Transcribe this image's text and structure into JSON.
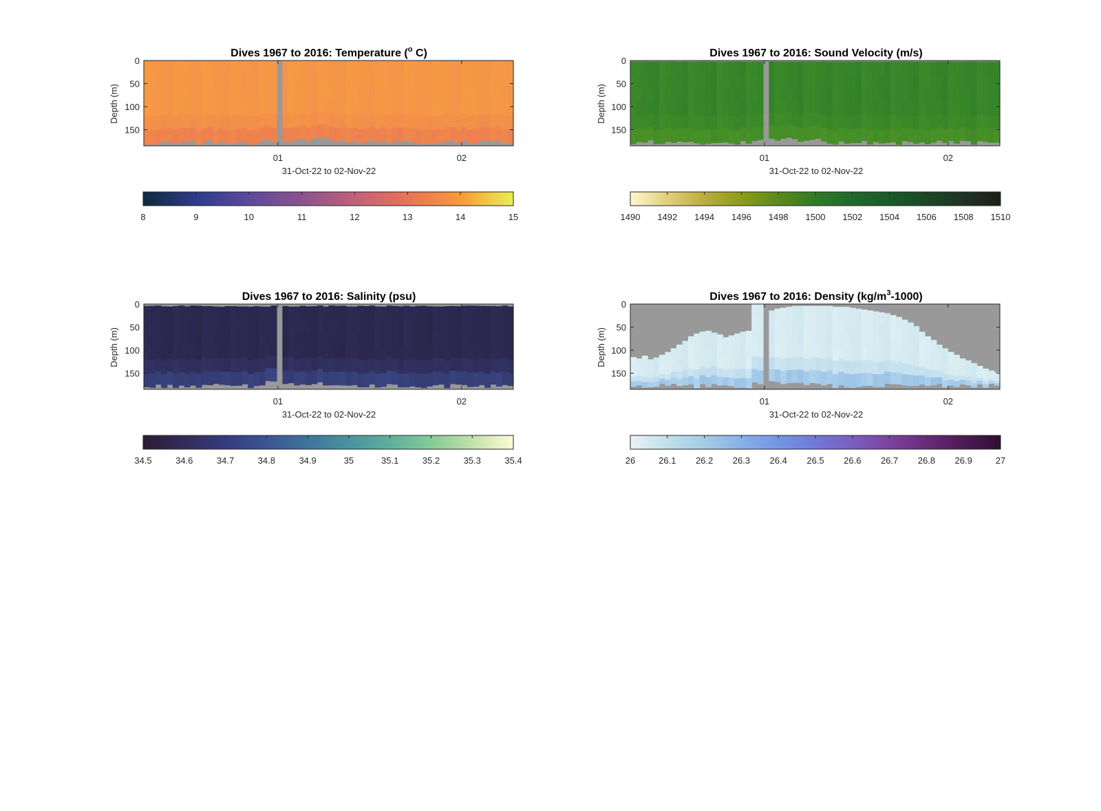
{
  "figure": {
    "background": "#ffffff",
    "nodata_color": "#999999"
  },
  "chart_data": [
    {
      "type": "heatmap",
      "title_main": "Dives 1967 to 2016: Temperature (",
      "title_sup": "o",
      "title_end": " C)",
      "xlabel": "31-Oct-22 to 02-Nov-22",
      "ylabel": "Depth (m)",
      "xticks": [
        "01",
        "02"
      ],
      "yticks": [
        "0",
        "50",
        "100",
        "150"
      ],
      "ylim": [
        0,
        185
      ],
      "grid": false,
      "gap_fraction": 0.36,
      "surface_bins": 1,
      "surface_variability": 0.5,
      "colorbar": {
        "ticks": [
          "8",
          "9",
          "10",
          "11",
          "12",
          "13",
          "14",
          "15"
        ],
        "colors": [
          "#0e2a3d",
          "#2e3a8c",
          "#5c4a9a",
          "#8a538f",
          "#c2607a",
          "#e97356",
          "#f79a3a",
          "#e7f052"
        ]
      },
      "fill": {
        "base": "#f69a44",
        "alt": "#f4924a",
        "deep": "#eb7a52"
      }
    },
    {
      "type": "heatmap",
      "title_main": "Dives 1967 to 2016: Sound Velocity (m/s)",
      "title_sup": "",
      "title_end": "",
      "xlabel": "31-Oct-22 to 02-Nov-22",
      "ylabel": "Depth (m)",
      "xticks": [
        "01",
        "02"
      ],
      "yticks": [
        "0",
        "50",
        "100",
        "150"
      ],
      "ylim": [
        0,
        185
      ],
      "grid": false,
      "gap_fraction": 0.36,
      "surface_bins": 2,
      "surface_variability": 0.5,
      "colorbar": {
        "ticks": [
          "1490",
          "1492",
          "1494",
          "1496",
          "1498",
          "1500",
          "1502",
          "1504",
          "1506",
          "1508",
          "1510"
        ],
        "colors": [
          "#fdf8cc",
          "#e1cf7e",
          "#b9ad3c",
          "#8c9c18",
          "#5b8a1c",
          "#2f7a27",
          "#1f6a2c",
          "#1a5a2a",
          "#1b4826",
          "#1f3322",
          "#1b1f18"
        ]
      },
      "fill": {
        "base": "#3b8a2a",
        "alt": "#2f7f28",
        "deep": "#4d9326"
      }
    },
    {
      "type": "heatmap",
      "title_main": "Dives 1967 to 2016: Salinity (psu)",
      "title_sup": "",
      "title_end": "",
      "xlabel": "31-Oct-22 to 02-Nov-22",
      "ylabel": "Depth (m)",
      "xticks": [
        "01",
        "02"
      ],
      "yticks": [
        "0",
        "50",
        "100",
        "150"
      ],
      "ylim": [
        0,
        185
      ],
      "grid": false,
      "gap_fraction": 0.36,
      "surface_bins": 3,
      "surface_variability": 3,
      "colorbar": {
        "ticks": [
          "34.5",
          "34.6",
          "34.7",
          "34.8",
          "34.9",
          "35",
          "35.1",
          "35.2",
          "35.3",
          "35.4"
        ],
        "colors": [
          "#2b1d35",
          "#322b5a",
          "#363b7e",
          "#3b5592",
          "#3f739b",
          "#4a92a0",
          "#5eb09c",
          "#86ca98",
          "#c2e2a8",
          "#fdfbd6"
        ]
      },
      "fill": {
        "base": "#2f2a55",
        "alt": "#2a2549",
        "deep": "#3a4a8a"
      }
    },
    {
      "type": "heatmap",
      "title_main": "Dives 1967 to 2016: Density (kg/m",
      "title_sup": "3",
      "title_end": "-1000)",
      "xlabel": "31-Oct-22 to 02-Nov-22",
      "ylabel": "Depth (m)",
      "xticks": [
        "01",
        "02"
      ],
      "yticks": [
        "0",
        "50",
        "100",
        "150"
      ],
      "ylim": [
        0,
        185
      ],
      "grid": false,
      "gap_fraction": 0.36,
      "surface_bins": 10,
      "surface_variability": 4,
      "colorbar": {
        "ticks": [
          "26",
          "26.1",
          "26.2",
          "26.3",
          "26.4",
          "26.5",
          "26.6",
          "26.7",
          "26.8",
          "26.9",
          "27"
        ],
        "colors": [
          "#e8f3f4",
          "#c1dfe9",
          "#a3cce6",
          "#87b1e6",
          "#7395e6",
          "#7178d8",
          "#7a5ec0",
          "#7c439e",
          "#6a2a7a",
          "#4e1a55",
          "#2e0f30"
        ]
      },
      "fill": {
        "base": "#dceff3",
        "alt": "#cfe6ef",
        "deep": "#90bce6"
      },
      "surface_profile": [
        115,
        118,
        112,
        120,
        116,
        110,
        104,
        96,
        88,
        80,
        70,
        64,
        60,
        58,
        62,
        66,
        72,
        68,
        64,
        60,
        58,
        0,
        0,
        22,
        14,
        10,
        8,
        6,
        4,
        4,
        4,
        4,
        4,
        4,
        4,
        6,
        6,
        6,
        8,
        10,
        12,
        14,
        16,
        18,
        20,
        24,
        28,
        34,
        40,
        48,
        60,
        70,
        78,
        88,
        96,
        104,
        110,
        118,
        122,
        128,
        134,
        140,
        144,
        148,
        150
      ]
    }
  ]
}
